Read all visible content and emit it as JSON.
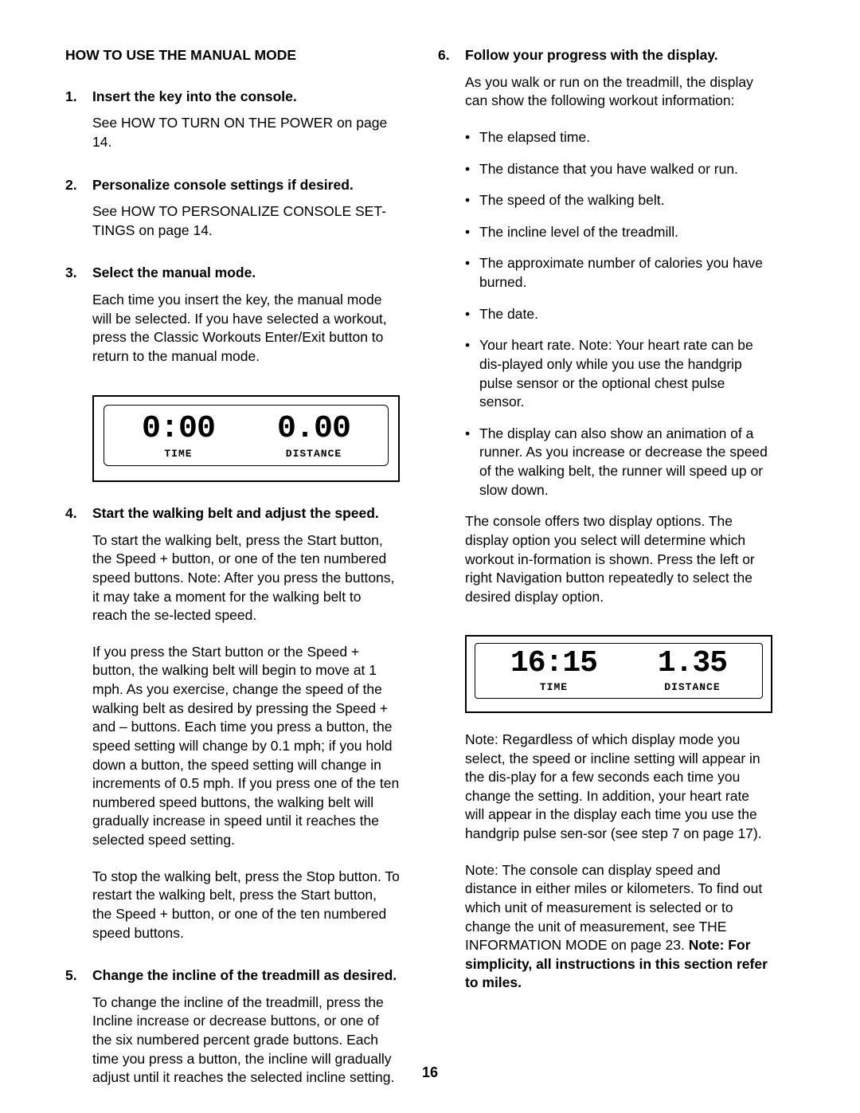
{
  "pageNumber": "16",
  "left": {
    "title": "HOW TO USE THE MANUAL MODE",
    "steps": [
      {
        "num": "1.",
        "heading": "Insert the key into the console.",
        "paras": [
          "See HOW TO TURN ON THE POWER on page 14."
        ]
      },
      {
        "num": "2.",
        "heading": "Personalize console settings if desired.",
        "paras": [
          "See HOW TO PERSONALIZE CONSOLE SET-TINGS on page 14."
        ]
      },
      {
        "num": "3.",
        "heading": "Select the manual mode.",
        "paras": [
          "Each time you insert the key, the manual mode will be selected. If you have selected a workout, press the Classic Workouts Enter/Exit button to return to the manual mode."
        ]
      }
    ],
    "display1": {
      "time": {
        "value": "0:00",
        "label": "TIME"
      },
      "distance": {
        "value": "0.00",
        "label": "DISTANCE"
      }
    },
    "steps2": [
      {
        "num": "4.",
        "heading": "Start the walking belt and adjust the speed.",
        "paras": [
          "To start the walking belt, press the Start button, the Speed + button, or one of the ten numbered speed buttons. Note: After you press the buttons, it may take a moment for the walking belt to reach the se-lected speed.",
          "If you press the Start button or the Speed + button, the walking belt will begin to move at 1 mph. As you exercise, change the speed of the walking belt as desired by pressing the Speed + and – buttons. Each time you press a button, the speed setting will change by 0.1 mph; if you hold down a button, the speed setting will change in increments of 0.5 mph. If you press one of the ten numbered speed buttons, the walking belt will gradually increase in speed until it reaches the selected speed setting.",
          "To stop the walking belt, press the Stop button. To restart the walking belt, press the Start button, the Speed + button, or one of the ten numbered speed buttons."
        ]
      },
      {
        "num": "5.",
        "heading": "Change the incline of the treadmill as desired.",
        "paras": [
          "To change the incline of the treadmill, press the Incline increase or decrease buttons, or one of the six numbered percent grade buttons. Each time you press a button, the incline will gradually adjust until it reaches the selected incline setting."
        ]
      }
    ]
  },
  "right": {
    "step6": {
      "num": "6.",
      "heading": "Follow your progress with the display.",
      "intro": "As you walk or run on the treadmill, the display can show the following workout information:",
      "bullets": [
        "The elapsed time.",
        "The distance that you have walked or run.",
        "The speed of the walking belt.",
        "The incline level of the treadmill.",
        "The approximate number of calories you have burned.",
        "The date.",
        "Your heart rate. Note: Your heart rate can be dis-played only while you use the handgrip pulse sensor or the optional chest pulse sensor.",
        "The display can also show an animation of a runner. As you increase or decrease the speed of the walking belt, the runner will speed up or slow down."
      ],
      "afterBullets": "The console offers two display options. The display option you select will determine which workout in-formation is shown. Press the left or right Navigation button repeatedly to select the desired display option."
    },
    "display2": {
      "time": {
        "value": "16:15",
        "label": "TIME"
      },
      "distance": {
        "value": "1.35",
        "label": "DISTANCE"
      }
    },
    "note1": "Note: Regardless of which display mode you select, the speed or incline setting will appear in the dis-play for a few seconds each time you change the setting. In addition, your heart rate will appear in the display each time you use the handgrip pulse sen-sor (see step 7 on page 17).",
    "note2_pre": "Note: The console can display speed and distance in either miles or kilometers. To find out which unit of measurement is selected or to change the unit of measurement, see THE INFORMATION MODE on page 23. ",
    "note2_bold": "Note: For simplicity, all instructions in this section refer to miles."
  }
}
